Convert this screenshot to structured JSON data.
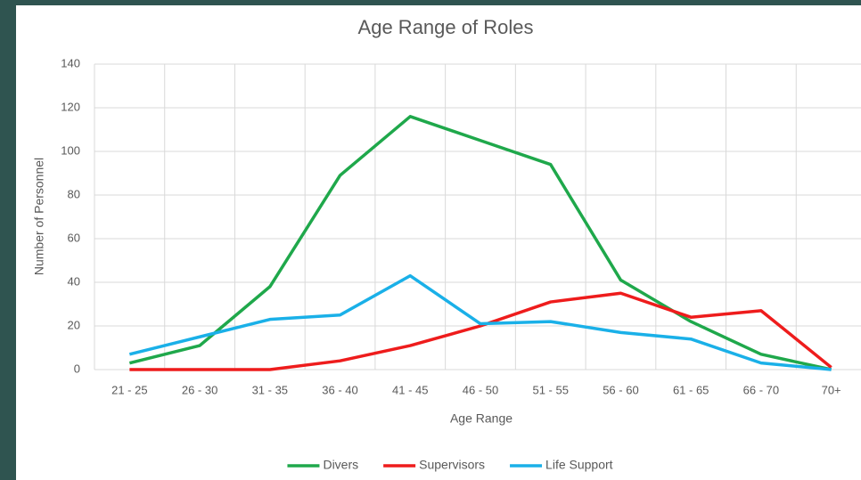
{
  "chart_data": {
    "type": "line",
    "title": "Age Range of Roles",
    "x_label": "Age Range",
    "y_label": "Number of Personnel",
    "categories": [
      "21 - 25",
      "26 - 30",
      "31 - 35",
      "36 - 40",
      "41 - 45",
      "46 - 50",
      "51 - 55",
      "56 - 60",
      "61 - 65",
      "66 - 70",
      "70+"
    ],
    "series": [
      {
        "name": "Divers",
        "color": "#1fa84b",
        "values": [
          3,
          11,
          38,
          89,
          116,
          105,
          94,
          41,
          22,
          7,
          0
        ]
      },
      {
        "name": "Supervisors",
        "color": "#ee1c1c",
        "values": [
          0,
          0,
          0,
          4,
          11,
          20,
          31,
          35,
          24,
          27,
          1
        ]
      },
      {
        "name": "Life Support",
        "color": "#1ab0e8",
        "values": [
          7,
          15,
          23,
          25,
          43,
          21,
          22,
          17,
          14,
          3,
          0
        ]
      }
    ],
    "ylim": [
      0,
      140
    ],
    "yticks": [
      0,
      20,
      40,
      60,
      80,
      100,
      120,
      140
    ],
    "grid": true,
    "legend": "bottom"
  }
}
